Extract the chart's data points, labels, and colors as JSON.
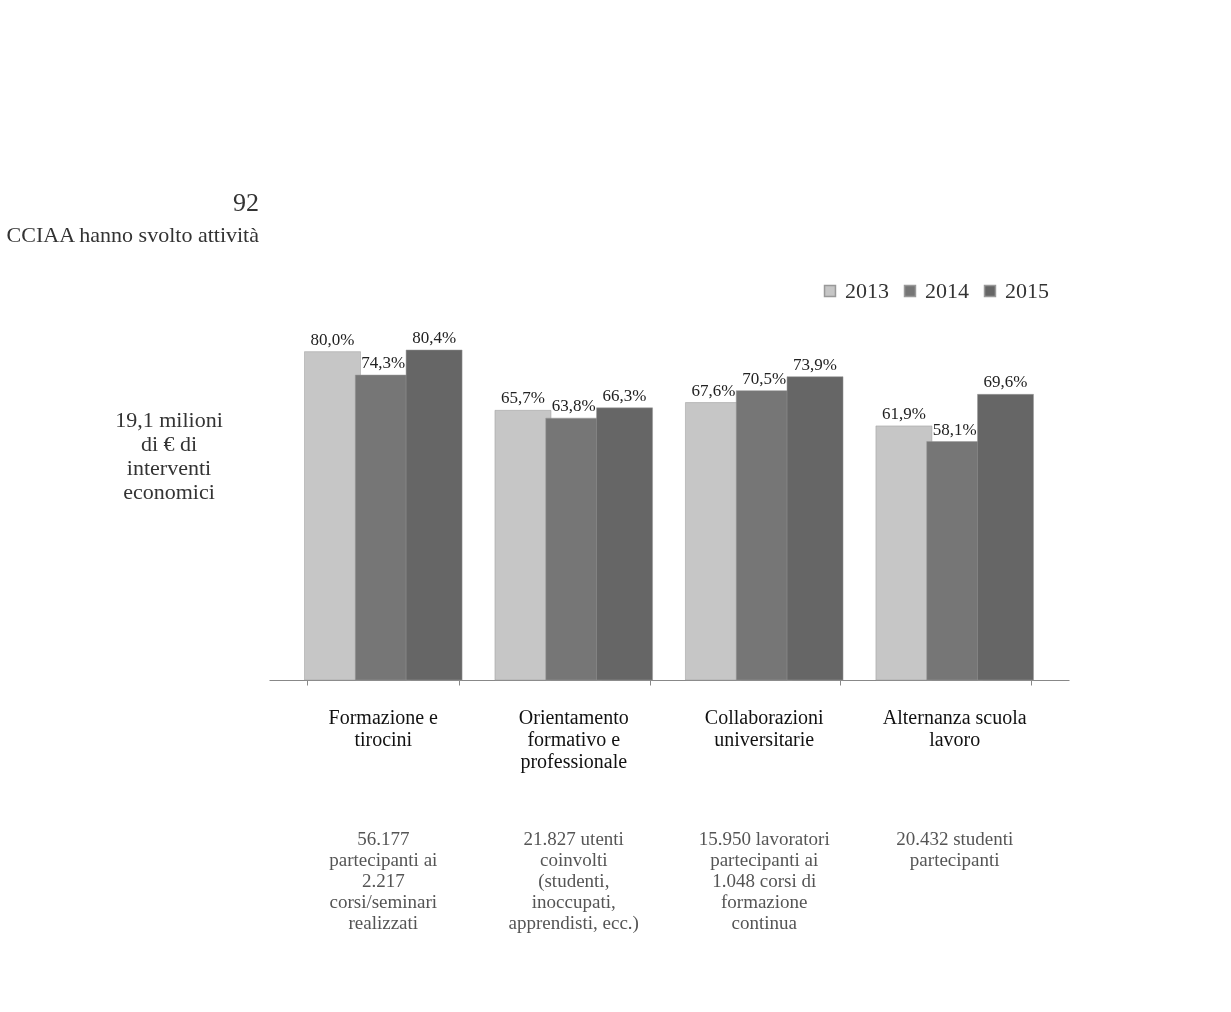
{
  "chart_data": {
    "type": "bar",
    "categories": [
      "Formazione e tirocini",
      "Orientamento formativo e professionale",
      "Collaborazioni universitarie",
      "Alternanza scuola lavoro"
    ],
    "series": [
      {
        "name": "2013",
        "color": "#c6c6c6",
        "values": [
          80.0,
          65.7,
          67.6,
          61.9
        ],
        "value_labels": [
          "80,0%",
          "65,7%",
          "67,6%",
          "61,9%"
        ]
      },
      {
        "name": "2014",
        "color": "#767676",
        "values": [
          74.3,
          63.8,
          70.5,
          58.1
        ],
        "value_labels": [
          "74,3%",
          "63,8%",
          "70,5%",
          "58,1%"
        ]
      },
      {
        "name": "2015",
        "color": "#666666",
        "values": [
          80.4,
          66.3,
          73.9,
          69.6
        ],
        "value_labels": [
          "80,4%",
          "66,3%",
          "73,9%",
          "69,6%"
        ]
      }
    ],
    "legend": "top right",
    "grid": false,
    "annotations": [
      "92",
      "CCIAA hanno svolto attività",
      "19,1 milioni di € di interventi economici",
      "56.177 partecipanti ai 2.217 corsi/seminari realizzati",
      "21.827 utenti coinvolti (studenti, inoccupati, apprendisti, ecc.)",
      "15.950 lavoratori partecipanti ai 1.048 corsi di formazione continua",
      "20.432 studenti partecipanti"
    ]
  }
}
